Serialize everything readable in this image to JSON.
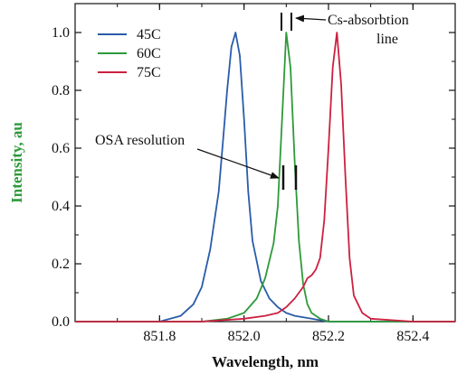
{
  "chart_data": {
    "type": "line",
    "title": "",
    "xlabel": "Wavelength, nm",
    "ylabel": "Intensity, au",
    "xlim": [
      851.6,
      852.5
    ],
    "ylim": [
      0.0,
      1.1
    ],
    "xticks": [
      851.8,
      852.0,
      852.2,
      852.4
    ],
    "xtick_labels": [
      "851.8",
      "852.0",
      "852.2",
      "852.4"
    ],
    "yticks": [
      0.0,
      0.2,
      0.4,
      0.6,
      0.8,
      1.0
    ],
    "ytick_labels": [
      "0.0",
      "0.2",
      "0.4",
      "0.6",
      "0.8",
      "1.0"
    ],
    "legend_position": "top-left",
    "series": [
      {
        "name": "45C",
        "color": "#2a5caa",
        "x": [
          851.6,
          851.8,
          851.85,
          851.88,
          851.9,
          851.92,
          851.94,
          851.95,
          851.96,
          851.97,
          851.98,
          851.99,
          852.0,
          852.01,
          852.02,
          852.04,
          852.06,
          852.08,
          852.1,
          852.12,
          852.16,
          852.2,
          852.3,
          852.5
        ],
        "y": [
          0.0,
          0.0,
          0.02,
          0.06,
          0.12,
          0.25,
          0.45,
          0.62,
          0.8,
          0.95,
          1.0,
          0.92,
          0.7,
          0.45,
          0.28,
          0.14,
          0.08,
          0.05,
          0.03,
          0.02,
          0.01,
          0.0,
          0.0,
          0.0
        ]
      },
      {
        "name": "60C",
        "color": "#2e9a3a",
        "x": [
          851.6,
          851.9,
          851.96,
          852.0,
          852.03,
          852.05,
          852.07,
          852.08,
          852.09,
          852.1,
          852.11,
          852.12,
          852.13,
          852.14,
          852.15,
          852.16,
          852.18,
          852.2,
          852.3,
          852.5
        ],
        "y": [
          0.0,
          0.0,
          0.01,
          0.03,
          0.08,
          0.15,
          0.27,
          0.4,
          0.7,
          1.0,
          0.88,
          0.55,
          0.28,
          0.13,
          0.06,
          0.03,
          0.01,
          0.0,
          0.0,
          0.0
        ],
        "labels": []
      },
      {
        "name": "75C",
        "color": "#cc2040",
        "x": [
          851.6,
          851.9,
          852.0,
          852.05,
          852.08,
          852.1,
          852.12,
          852.14,
          852.15,
          852.16,
          852.17,
          852.18,
          852.19,
          852.2,
          852.21,
          852.22,
          852.23,
          852.24,
          852.25,
          852.26,
          852.28,
          852.3,
          852.4,
          852.5
        ],
        "y": [
          0.0,
          0.0,
          0.01,
          0.02,
          0.03,
          0.05,
          0.08,
          0.12,
          0.15,
          0.16,
          0.18,
          0.22,
          0.35,
          0.6,
          0.88,
          1.0,
          0.82,
          0.5,
          0.22,
          0.09,
          0.03,
          0.01,
          0.0,
          0.0
        ]
      }
    ],
    "annotations": [
      {
        "text_lines": [
          "Cs-absorbtion",
          "line"
        ],
        "points_to_x": 852.11
      },
      {
        "text_lines": [
          "OSA resolution"
        ],
        "points_to_x": 852.1
      }
    ]
  }
}
